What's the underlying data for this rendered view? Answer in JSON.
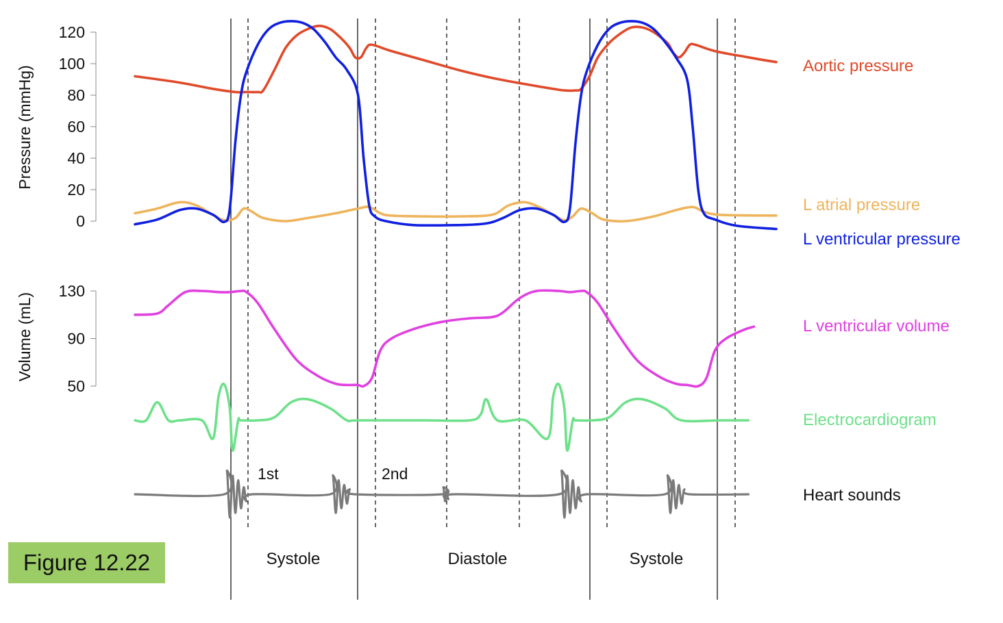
{
  "figure": {
    "badge_label": "Figure 12.22",
    "badge_color": "#9ccc65"
  },
  "chart_data": {
    "type": "line",
    "pressure_axis": {
      "label": "Pressure (mmHg)",
      "ticks": [
        0,
        20,
        40,
        60,
        80,
        100,
        120
      ],
      "ylim": [
        0,
        120
      ]
    },
    "volume_axis": {
      "label": "Volume (mL)",
      "ticks": [
        50,
        90,
        130
      ],
      "ylim": [
        50,
        130
      ]
    },
    "phases": [
      {
        "label": "Systole"
      },
      {
        "label": "Diastole"
      },
      {
        "label": "Systole"
      }
    ],
    "sound_labels": [
      "1st",
      "2nd"
    ],
    "series": [
      {
        "name": "Aortic pressure",
        "color": "#e04a2a",
        "axis": "pressure",
        "points": [
          [
            0,
            92
          ],
          [
            8,
            88
          ],
          [
            14,
            84
          ],
          [
            18,
            82
          ],
          [
            20,
            82
          ],
          [
            22,
            82
          ],
          [
            23,
            83
          ],
          [
            25,
            96
          ],
          [
            27,
            110
          ],
          [
            29,
            118
          ],
          [
            31,
            122
          ],
          [
            33,
            124
          ],
          [
            35,
            122
          ],
          [
            37,
            116
          ],
          [
            38.5,
            110
          ],
          [
            39.5,
            104
          ],
          [
            40.5,
            104
          ],
          [
            41.5,
            110
          ],
          [
            42.5,
            112
          ],
          [
            46,
            108
          ],
          [
            52,
            102
          ],
          [
            58,
            96
          ],
          [
            64,
            91
          ],
          [
            70,
            87
          ],
          [
            75,
            84
          ],
          [
            77,
            83
          ],
          [
            79,
            83
          ],
          [
            80,
            84
          ],
          [
            81.5,
            92
          ],
          [
            83,
            104
          ],
          [
            85,
            113
          ],
          [
            87,
            119
          ],
          [
            89,
            123
          ],
          [
            91,
            123
          ],
          [
            93,
            120
          ],
          [
            95.5,
            113
          ],
          [
            96.5,
            107
          ],
          [
            97.5,
            104
          ],
          [
            98.5,
            107
          ],
          [
            99.5,
            112
          ],
          [
            100.5,
            112
          ],
          [
            104,
            108
          ],
          [
            110,
            104
          ],
          [
            115,
            101
          ]
        ]
      },
      {
        "name": "L atrial pressure",
        "color": "#eeb45c",
        "axis": "pressure",
        "points": [
          [
            0,
            5
          ],
          [
            4,
            8
          ],
          [
            8,
            12
          ],
          [
            11,
            10
          ],
          [
            14,
            4
          ],
          [
            16,
            0.5
          ],
          [
            18,
            2
          ],
          [
            19.5,
            8
          ],
          [
            21,
            6
          ],
          [
            23,
            2
          ],
          [
            27,
            0
          ],
          [
            31,
            2
          ],
          [
            36,
            5
          ],
          [
            40,
            8
          ],
          [
            42,
            9
          ],
          [
            44,
            5
          ],
          [
            46,
            3.5
          ],
          [
            52,
            3
          ],
          [
            58,
            3
          ],
          [
            64,
            4
          ],
          [
            67,
            10
          ],
          [
            70,
            12
          ],
          [
            73,
            8
          ],
          [
            75,
            4
          ],
          [
            77,
            0.5
          ],
          [
            78.5,
            3
          ],
          [
            80,
            8
          ],
          [
            82,
            5
          ],
          [
            84,
            1
          ],
          [
            88,
            0
          ],
          [
            93,
            3
          ],
          [
            97,
            7
          ],
          [
            100,
            9
          ],
          [
            102,
            6
          ],
          [
            105,
            4
          ],
          [
            115,
            3.5
          ]
        ]
      },
      {
        "name": "L ventricular pressure",
        "color": "#1020e0",
        "axis": "pressure",
        "points": [
          [
            0,
            -2
          ],
          [
            4,
            1
          ],
          [
            8,
            7
          ],
          [
            11,
            8
          ],
          [
            14,
            4
          ],
          [
            16,
            -0.5
          ],
          [
            17,
            8
          ],
          [
            18,
            50
          ],
          [
            19,
            80
          ],
          [
            20,
            95
          ],
          [
            22,
            112
          ],
          [
            24,
            122
          ],
          [
            26,
            126
          ],
          [
            28,
            127
          ],
          [
            30,
            126
          ],
          [
            32,
            122
          ],
          [
            34,
            114
          ],
          [
            36,
            104
          ],
          [
            38,
            96
          ],
          [
            40,
            80
          ],
          [
            41,
            40
          ],
          [
            42,
            10
          ],
          [
            43,
            3
          ],
          [
            45,
            0
          ],
          [
            50,
            -2.5
          ],
          [
            58,
            -2.5
          ],
          [
            63,
            -1.5
          ],
          [
            66,
            2
          ],
          [
            69,
            7
          ],
          [
            72,
            8
          ],
          [
            75,
            4
          ],
          [
            77,
            -0.5
          ],
          [
            78,
            8
          ],
          [
            79,
            50
          ],
          [
            80,
            80
          ],
          [
            81,
            95
          ],
          [
            83,
            112
          ],
          [
            85,
            122
          ],
          [
            87,
            126
          ],
          [
            89,
            127
          ],
          [
            91,
            126
          ],
          [
            93,
            122
          ],
          [
            95,
            114
          ],
          [
            97,
            104
          ],
          [
            99,
            90
          ],
          [
            100,
            60
          ],
          [
            101,
            20
          ],
          [
            102,
            5
          ],
          [
            104,
            1
          ],
          [
            108,
            -3
          ],
          [
            115,
            -5
          ]
        ]
      },
      {
        "name": "L ventricular volume",
        "color": "#e040e0",
        "axis": "volume",
        "points": [
          [
            0,
            110
          ],
          [
            4,
            111
          ],
          [
            6,
            118
          ],
          [
            9,
            129
          ],
          [
            12,
            130
          ],
          [
            15,
            129
          ],
          [
            17,
            129
          ],
          [
            19,
            130
          ],
          [
            20,
            129
          ],
          [
            22,
            120
          ],
          [
            25,
            98
          ],
          [
            29,
            72
          ],
          [
            33,
            58
          ],
          [
            36,
            52
          ],
          [
            38,
            51
          ],
          [
            40,
            51
          ],
          [
            41,
            50
          ],
          [
            42.5,
            57
          ],
          [
            44,
            80
          ],
          [
            46,
            90
          ],
          [
            50,
            98
          ],
          [
            55,
            104
          ],
          [
            60,
            107
          ],
          [
            64,
            108
          ],
          [
            66,
            112
          ],
          [
            69,
            124
          ],
          [
            72,
            130
          ],
          [
            76,
            130
          ],
          [
            78,
            129
          ],
          [
            80,
            130
          ],
          [
            81,
            129
          ],
          [
            83,
            120
          ],
          [
            86,
            98
          ],
          [
            90,
            72
          ],
          [
            94,
            58
          ],
          [
            97,
            52
          ],
          [
            99,
            51
          ],
          [
            101,
            50
          ],
          [
            102.5,
            57
          ],
          [
            104,
            80
          ],
          [
            106,
            90
          ],
          [
            109,
            97
          ],
          [
            111,
            100
          ]
        ]
      },
      {
        "name": "Electrocardiogram",
        "color": "#6ee08a",
        "axis": "ecg",
        "points": [
          [
            0,
            0
          ],
          [
            2,
            0
          ],
          [
            4,
            0.3
          ],
          [
            6,
            0
          ],
          [
            8,
            0
          ],
          [
            12,
            0
          ],
          [
            14,
            -0.3
          ],
          [
            15,
            0.4
          ],
          [
            16,
            0.6
          ],
          [
            17,
            0.2
          ],
          [
            17.5,
            -0.5
          ],
          [
            18.5,
            0
          ],
          [
            19,
            0
          ],
          [
            22,
            0
          ],
          [
            25,
            0.05
          ],
          [
            28,
            0.3
          ],
          [
            31,
            0.35
          ],
          [
            35,
            0.2
          ],
          [
            38,
            0
          ],
          [
            40,
            0
          ],
          [
            52,
            0
          ],
          [
            60,
            0
          ],
          [
            62,
            0.1
          ],
          [
            63,
            0.35
          ],
          [
            65,
            0
          ],
          [
            70,
            0
          ],
          [
            74,
            -0.3
          ],
          [
            75,
            0.4
          ],
          [
            76,
            0.6
          ],
          [
            77,
            0.2
          ],
          [
            77.5,
            -0.5
          ],
          [
            78.5,
            0
          ],
          [
            79,
            0
          ],
          [
            82,
            0
          ],
          [
            85,
            0.05
          ],
          [
            88,
            0.3
          ],
          [
            91,
            0.35
          ],
          [
            95,
            0.2
          ],
          [
            98,
            0
          ],
          [
            105,
            0
          ],
          [
            110,
            0
          ]
        ]
      },
      {
        "name": "Heart sounds",
        "color": "#7a7a7a",
        "axis": "sound",
        "points": [
          [
            0,
            0
          ],
          [
            16,
            0
          ],
          [
            16.5,
            1
          ],
          [
            17,
            -1
          ],
          [
            17.5,
            0.8
          ],
          [
            18,
            -0.8
          ],
          [
            18.5,
            0.6
          ],
          [
            19,
            -0.6
          ],
          [
            19.5,
            0.3
          ],
          [
            20,
            -0.3
          ],
          [
            21,
            0
          ],
          [
            35,
            0
          ],
          [
            35.5,
            0.8
          ],
          [
            36,
            -0.8
          ],
          [
            36.5,
            0.6
          ],
          [
            37,
            -0.6
          ],
          [
            37.5,
            0.4
          ],
          [
            38,
            -0.4
          ],
          [
            38.5,
            0.2
          ],
          [
            39.5,
            0
          ],
          [
            55,
            0
          ],
          [
            55.3,
            0.3
          ],
          [
            55.6,
            -0.3
          ],
          [
            55.9,
            0.2
          ],
          [
            56.2,
            -0.2
          ],
          [
            57,
            0
          ],
          [
            76,
            0
          ],
          [
            76.5,
            1
          ],
          [
            77,
            -1
          ],
          [
            77.5,
            0.8
          ],
          [
            78,
            -0.8
          ],
          [
            78.5,
            0.6
          ],
          [
            79,
            -0.6
          ],
          [
            79.5,
            0.3
          ],
          [
            80,
            -0.3
          ],
          [
            81,
            0
          ],
          [
            95,
            0
          ],
          [
            95.5,
            0.8
          ],
          [
            96,
            -0.8
          ],
          [
            96.5,
            0.6
          ],
          [
            97,
            -0.6
          ],
          [
            97.5,
            0.4
          ],
          [
            98,
            -0.4
          ],
          [
            98.5,
            0.2
          ],
          [
            99.5,
            0
          ],
          [
            110,
            0
          ]
        ]
      }
    ]
  }
}
